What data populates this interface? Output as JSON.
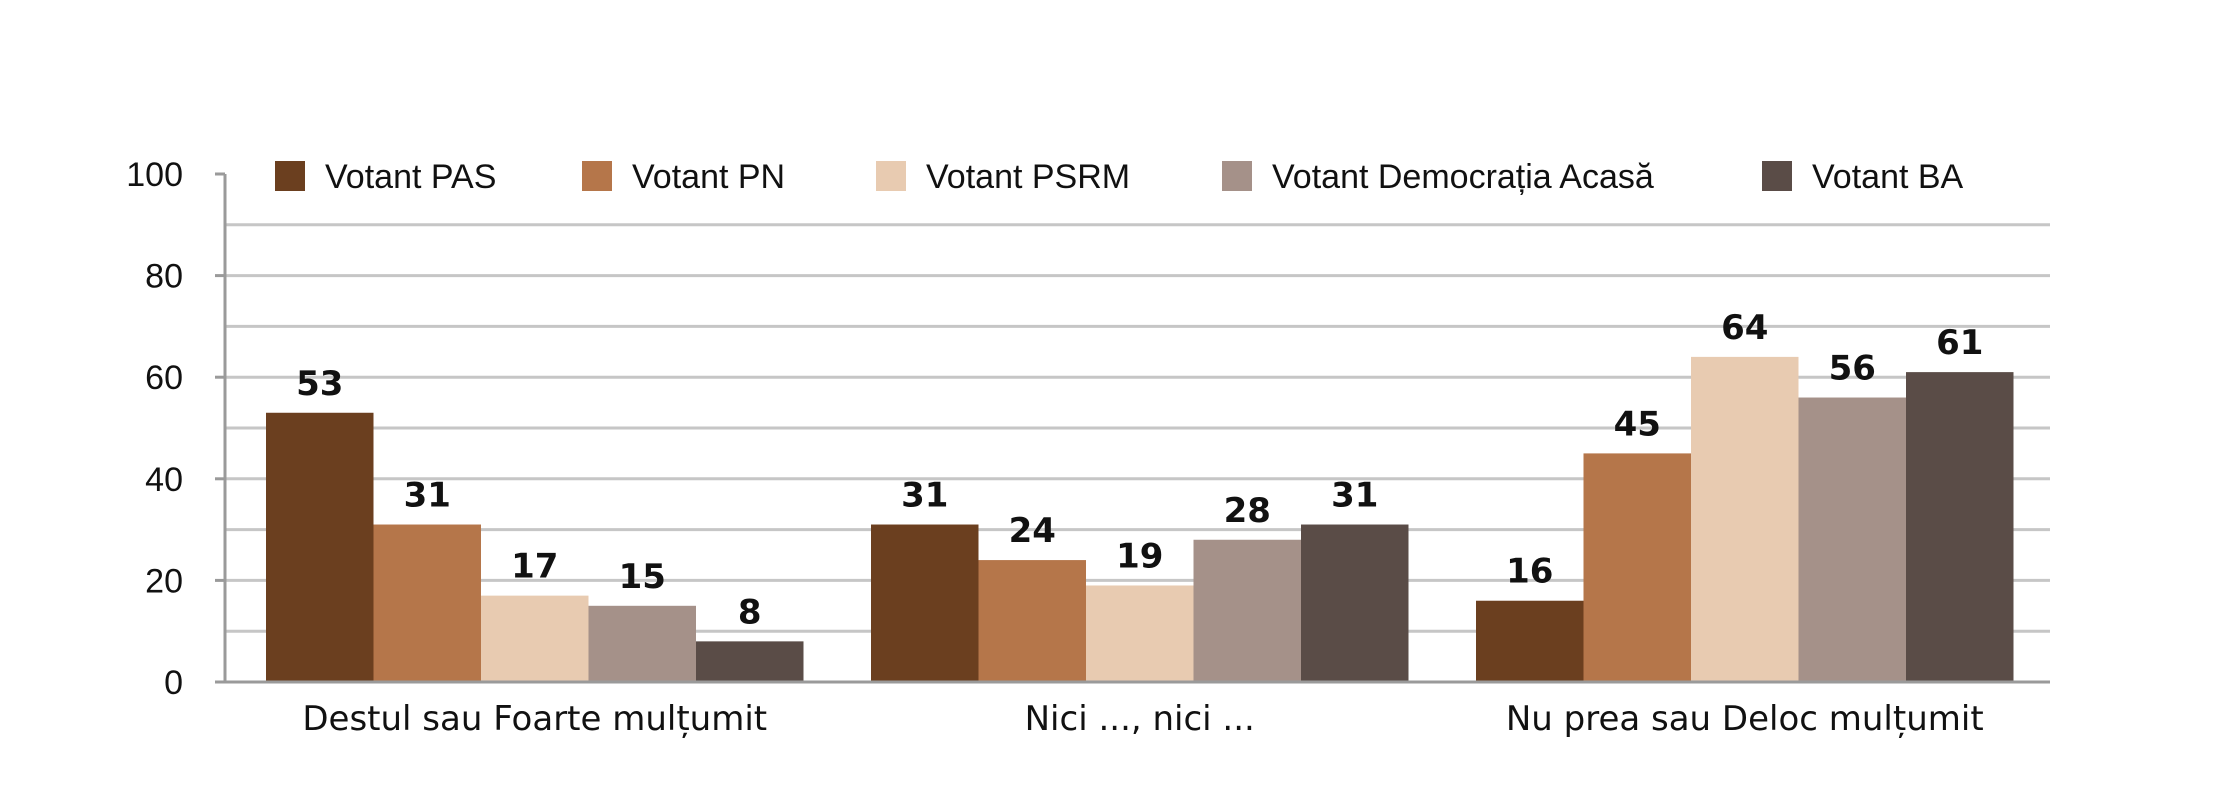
{
  "chart_data": {
    "type": "bar",
    "title": "",
    "xlabel": "",
    "ylabel": "",
    "ylim": [
      0,
      100
    ],
    "yticks": [
      0,
      20,
      40,
      60,
      80,
      100
    ],
    "grid": true,
    "legend_position": "top",
    "categories": [
      "Destul sau Foarte mulțumit",
      "Nici ..., nici ...",
      "Nu prea sau Deloc mulțumit"
    ],
    "series": [
      {
        "name": "Votant PAS",
        "color": "#6b3f1f",
        "values": [
          53,
          31,
          16
        ]
      },
      {
        "name": "Votant PN",
        "color": "#b5764a",
        "values": [
          31,
          24,
          45
        ]
      },
      {
        "name": "Votant PSRM",
        "color": "#e8cbb1",
        "values": [
          17,
          19,
          64
        ]
      },
      {
        "name": "Votant Democrația Acasă",
        "color": "#a59189",
        "values": [
          15,
          28,
          56
        ]
      },
      {
        "name": "Votant BA",
        "color": "#5a4c47",
        "values": [
          8,
          31,
          61
        ]
      }
    ],
    "data_labels": true
  }
}
